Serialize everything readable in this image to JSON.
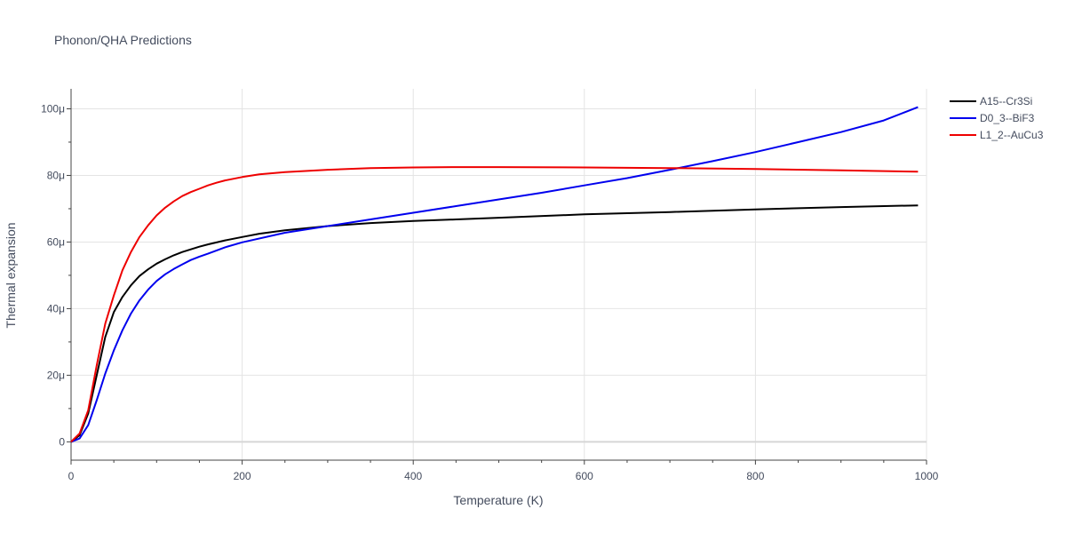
{
  "chart_data": {
    "type": "line",
    "title": "Phonon/QHA Predictions",
    "xlabel": "Temperature (K)",
    "ylabel": "Thermal expansion",
    "xlim": [
      0,
      1000
    ],
    "ylim": [
      -5.5e-06,
      0.000106
    ],
    "x_ticks": [
      0,
      200,
      400,
      600,
      800,
      1000
    ],
    "x_tick_labels": [
      "0",
      "200",
      "400",
      "600",
      "800",
      "1000"
    ],
    "y_ticks": [
      0,
      2e-05,
      4e-05,
      6e-05,
      8e-05,
      0.0001
    ],
    "y_tick_labels": [
      "0",
      "20μ",
      "40μ",
      "60μ",
      "80μ",
      "100μ"
    ],
    "grid": true,
    "legend_position": "top-right",
    "series": [
      {
        "name": "A15--Cr3Si",
        "color": "#000000",
        "x": [
          0,
          10,
          20,
          30,
          40,
          50,
          60,
          70,
          80,
          90,
          100,
          110,
          120,
          130,
          140,
          150,
          160,
          180,
          200,
          220,
          250,
          300,
          350,
          400,
          450,
          500,
          600,
          700,
          800,
          900,
          990
        ],
        "y": [
          0,
          2e-06,
          8.5e-06,
          2e-05,
          3.15e-05,
          3.9e-05,
          4.35e-05,
          4.7e-05,
          4.98e-05,
          5.18e-05,
          5.35e-05,
          5.48e-05,
          5.6e-05,
          5.7e-05,
          5.78e-05,
          5.86e-05,
          5.93e-05,
          6.05e-05,
          6.15e-05,
          6.25e-05,
          6.35e-05,
          6.48e-05,
          6.57e-05,
          6.63e-05,
          6.68e-05,
          6.73e-05,
          6.83e-05,
          6.9e-05,
          6.98e-05,
          7.05e-05,
          7.1e-05
        ]
      },
      {
        "name": "D0_3--BiF3",
        "color": "#0000ee",
        "x": [
          0,
          10,
          20,
          30,
          40,
          50,
          60,
          70,
          80,
          90,
          100,
          110,
          120,
          130,
          140,
          150,
          160,
          180,
          200,
          250,
          300,
          350,
          400,
          450,
          500,
          550,
          600,
          650,
          700,
          750,
          800,
          850,
          900,
          950,
          990
        ],
        "y": [
          0,
          1e-06,
          5e-06,
          1.25e-05,
          2.05e-05,
          2.75e-05,
          3.35e-05,
          3.85e-05,
          4.25e-05,
          4.57e-05,
          4.83e-05,
          5.03e-05,
          5.19e-05,
          5.33e-05,
          5.46e-05,
          5.56e-05,
          5.65e-05,
          5.84e-05,
          5.99e-05,
          6.28e-05,
          6.48e-05,
          6.68e-05,
          6.88e-05,
          7.08e-05,
          7.28e-05,
          7.48e-05,
          7.7e-05,
          7.92e-05,
          8.17e-05,
          8.43e-05,
          8.7e-05,
          9e-05,
          9.3e-05,
          9.65e-05,
          0.0001005
        ]
      },
      {
        "name": "L1_2--AuCu3",
        "color": "#ee0000",
        "x": [
          0,
          10,
          20,
          30,
          40,
          50,
          60,
          70,
          80,
          90,
          100,
          110,
          120,
          130,
          140,
          150,
          160,
          170,
          180,
          200,
          220,
          250,
          300,
          350,
          400,
          450,
          500,
          600,
          700,
          800,
          900,
          990
        ],
        "y": [
          0,
          2.5e-06,
          9.5e-06,
          2.3e-05,
          3.55e-05,
          4.4e-05,
          5.15e-05,
          5.7e-05,
          6.15e-05,
          6.5e-05,
          6.8e-05,
          7.03e-05,
          7.22e-05,
          7.38e-05,
          7.5e-05,
          7.6e-05,
          7.7e-05,
          7.78e-05,
          7.85e-05,
          7.95e-05,
          8.03e-05,
          8.1e-05,
          8.17e-05,
          8.22e-05,
          8.24e-05,
          8.25e-05,
          8.25e-05,
          8.24e-05,
          8.22e-05,
          8.19e-05,
          8.15e-05,
          8.11e-05
        ]
      }
    ]
  }
}
